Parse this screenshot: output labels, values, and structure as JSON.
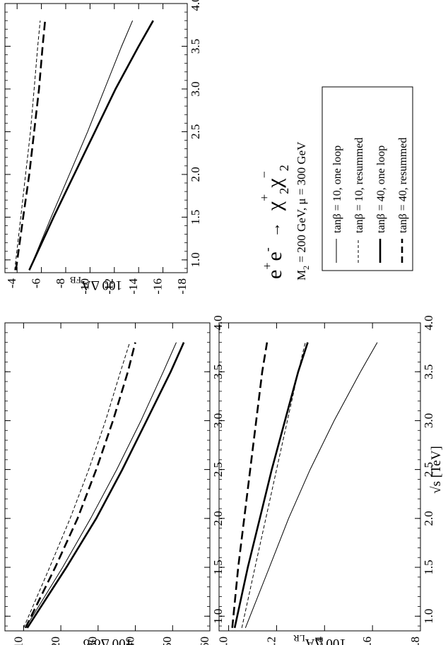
{
  "figure": {
    "xlabel": "√s [TeV]",
    "process": {
      "e1": "e",
      "e1_sup": "+",
      "e2": "e",
      "e2_sup": "-",
      "arrow": "→",
      "chi1": "χ",
      "chi1_sup": "+",
      "chi1_sub": "2",
      "chi2": "χ",
      "chi2_sup": "−",
      "chi2_sub": "2"
    },
    "params": {
      "m2_sym": "M",
      "m2_sub": "2",
      "rest": " = 200 GeV, μ = 300 GeV"
    },
    "legend": [
      {
        "label": "tanβ = 10, one loop",
        "style": "thin-solid"
      },
      {
        "label": "tanβ = 10, resummed",
        "style": "thin-dashed"
      },
      {
        "label": "tanβ = 40, one loop",
        "style": "thick-solid"
      },
      {
        "label": "tanβ = 40, resummed",
        "style": "thick-dashed"
      }
    ]
  },
  "chart_data": [
    {
      "type": "line",
      "ylabel": "100 Δσ/σ",
      "xlim": [
        0.85,
        4.0
      ],
      "ylim": [
        -5,
        -60
      ],
      "xticks": [
        "1.0",
        "1.5",
        "2.0",
        "2.5",
        "3.0",
        "3.5",
        "4.0"
      ],
      "yticks": [
        "-10",
        "-20",
        "-30",
        "-40",
        "-50",
        "-60"
      ],
      "series": [
        {
          "style": "thin-solid",
          "x": [
            0.88,
            1.5,
            2.0,
            2.5,
            3.0,
            3.5,
            3.8
          ],
          "y": [
            -10.5,
            -20.5,
            -28,
            -35,
            -41.5,
            -47.5,
            -51
          ]
        },
        {
          "style": "thin-dashed",
          "x": [
            0.88,
            1.5,
            2.0,
            2.5,
            3.0,
            3.5,
            3.8
          ],
          "y": [
            -10,
            -17,
            -22.5,
            -27.5,
            -32,
            -36,
            -38.5
          ]
        },
        {
          "style": "thick-solid",
          "x": [
            0.88,
            1.5,
            2.0,
            2.5,
            3.0,
            3.5,
            3.8
          ],
          "y": [
            -11,
            -21.5,
            -29.5,
            -36.5,
            -43,
            -49.5,
            -53
          ]
        },
        {
          "style": "thick-dashed",
          "x": [
            0.88,
            1.5,
            2.0,
            2.5,
            3.0,
            3.5,
            3.8
          ],
          "y": [
            -10.5,
            -18.5,
            -24.5,
            -29.5,
            -34,
            -38,
            -40
          ]
        }
      ]
    },
    {
      "type": "line",
      "ylabel": "100 ΔA_FB",
      "xlim": [
        0.85,
        4.0
      ],
      "ylim": [
        -3,
        -18
      ],
      "xticks": [
        "1.0",
        "1.5",
        "2.0",
        "2.5",
        "3.0",
        "3.5",
        "4.0"
      ],
      "yticks": [
        "-4",
        "-6",
        "-8",
        "-10",
        "-12",
        "-14",
        "-16",
        "-18"
      ],
      "series": [
        {
          "style": "thin-solid",
          "x": [
            0.88,
            1.5,
            2.0,
            2.5,
            3.0,
            3.5,
            3.8
          ],
          "y": [
            -5.0,
            -6.8,
            -8.3,
            -9.8,
            -11.2,
            -12.6,
            -13.5
          ]
        },
        {
          "style": "thin-dashed",
          "x": [
            0.88,
            1.5,
            2.0,
            2.5,
            3.0,
            3.5,
            3.8
          ],
          "y": [
            -3.8,
            -4.3,
            -4.7,
            -5.1,
            -5.4,
            -5.7,
            -5.9
          ]
        },
        {
          "style": "thick-solid",
          "x": [
            0.88,
            1.5,
            2.0,
            2.5,
            3.0,
            3.5,
            3.8
          ],
          "y": [
            -5.0,
            -7.0,
            -8.7,
            -10.4,
            -12.1,
            -14.0,
            -15.2
          ]
        },
        {
          "style": "thick-dashed",
          "x": [
            0.88,
            1.5,
            2.0,
            2.5,
            3.0,
            3.5,
            3.8
          ],
          "y": [
            -3.9,
            -4.5,
            -5.0,
            -5.4,
            -5.8,
            -6.1,
            -6.3
          ]
        }
      ]
    },
    {
      "type": "line",
      "ylabel": "100 ΔA_LR",
      "xlim": [
        0.85,
        4.0
      ],
      "ylim": [
        0.04,
        -0.8
      ],
      "xticks": [
        "1.0",
        "1.5",
        "2.0",
        "2.5",
        "3.0",
        "3.5",
        "4.0"
      ],
      "yticks": [
        "0.0",
        "-0.2",
        "-0.4",
        "-0.6",
        "-0.8"
      ],
      "series": [
        {
          "style": "thin-solid",
          "x": [
            0.88,
            1.5,
            2.0,
            2.5,
            3.0,
            3.5,
            3.8
          ],
          "y": [
            -0.07,
            -0.17,
            -0.25,
            -0.34,
            -0.44,
            -0.55,
            -0.62
          ]
        },
        {
          "style": "thin-dashed",
          "x": [
            0.88,
            1.5,
            2.0,
            2.5,
            3.0,
            3.5,
            3.8
          ],
          "y": [
            -0.055,
            -0.11,
            -0.155,
            -0.2,
            -0.245,
            -0.29,
            -0.32
          ]
        },
        {
          "style": "thick-solid",
          "x": [
            0.88,
            1.5,
            2.0,
            2.5,
            3.0,
            3.5,
            3.8
          ],
          "y": [
            -0.025,
            -0.08,
            -0.13,
            -0.18,
            -0.235,
            -0.29,
            -0.33
          ]
        },
        {
          "style": "thick-dashed",
          "x": [
            0.88,
            1.5,
            2.0,
            2.5,
            3.0,
            3.5,
            3.8
          ],
          "y": [
            -0.015,
            -0.04,
            -0.065,
            -0.09,
            -0.115,
            -0.14,
            -0.16
          ]
        }
      ]
    }
  ]
}
